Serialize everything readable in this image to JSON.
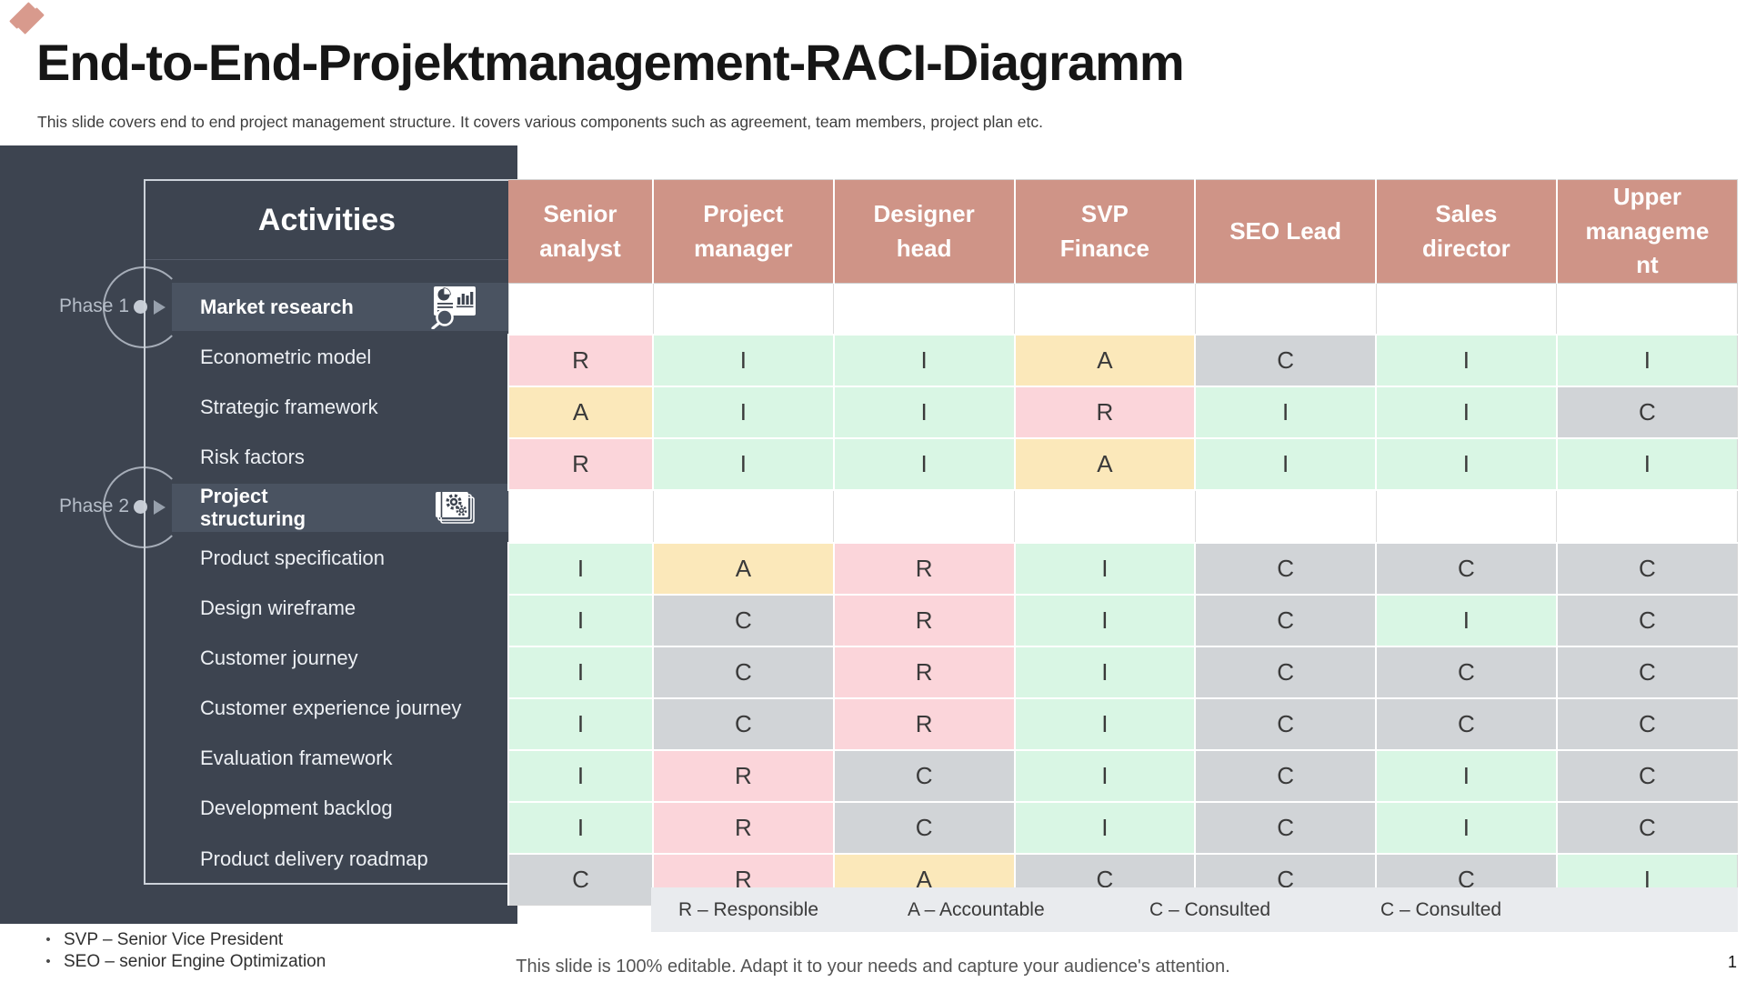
{
  "page": {
    "title": "End-to-End-Projektmanagement-RACI-Diagramm",
    "subtitle": "This slide covers end to end project management structure. It covers various components such as agreement, team members, project plan etc.",
    "footer_note": "This slide is 100% editable. Adapt it to your needs and capture your audience's attention.",
    "page_number": "1",
    "logo_icon": "diagonal-ribbons-logo"
  },
  "sidebar": {
    "header": "Activities",
    "phases": [
      {
        "label": "Phase 1",
        "row_index": 0
      },
      {
        "label": "Phase 2",
        "row_index": 4
      }
    ]
  },
  "table": {
    "columns": [
      "Senior analyst",
      "Project manager",
      "Designer head",
      "SVP Finance",
      "SEO Lead",
      "Sales director",
      "Upper management"
    ],
    "rows": [
      {
        "activity": "Market research",
        "highlighted": true,
        "icon": "market-research-chart-icon",
        "cells": [
          "",
          "",
          "",
          "",
          "",
          "",
          ""
        ]
      },
      {
        "activity": "Econometric model",
        "highlighted": false,
        "cells": [
          "R",
          "I",
          "I",
          "A",
          "C",
          "I",
          "I"
        ]
      },
      {
        "activity": "Strategic framework",
        "highlighted": false,
        "cells": [
          "A",
          "I",
          "I",
          "R",
          "I",
          "I",
          "C"
        ]
      },
      {
        "activity": "Risk factors",
        "highlighted": false,
        "cells": [
          "R",
          "I",
          "I",
          "A",
          "I",
          "I",
          "I"
        ]
      },
      {
        "activity": "Project\nstructuring",
        "highlighted": true,
        "icon": "project-structuring-gears-icon",
        "cells": [
          "",
          "",
          "",
          "",
          "",
          "",
          ""
        ]
      },
      {
        "activity": "Product specification",
        "highlighted": false,
        "cells": [
          "I",
          "A",
          "R",
          "I",
          "C",
          "C",
          "C"
        ]
      },
      {
        "activity": "Design wireframe",
        "highlighted": false,
        "cells": [
          "I",
          "C",
          "R",
          "I",
          "C",
          "I",
          "C"
        ]
      },
      {
        "activity": "Customer journey",
        "highlighted": false,
        "cells": [
          "I",
          "C",
          "R",
          "I",
          "C",
          "C",
          "C"
        ]
      },
      {
        "activity": "Customer experience journey",
        "highlighted": false,
        "cells": [
          "I",
          "C",
          "R",
          "I",
          "C",
          "C",
          "C"
        ]
      },
      {
        "activity": "Evaluation framework",
        "highlighted": false,
        "cells": [
          "I",
          "R",
          "C",
          "I",
          "C",
          "I",
          "C"
        ]
      },
      {
        "activity": "Development backlog",
        "highlighted": false,
        "cells": [
          "I",
          "R",
          "C",
          "I",
          "C",
          "I",
          "C"
        ]
      },
      {
        "activity": "Product delivery roadmap",
        "highlighted": false,
        "cells": [
          "C",
          "R",
          "A",
          "C",
          "C",
          "C",
          "I"
        ]
      }
    ]
  },
  "legend": {
    "items": [
      "R – Responsible",
      "A – Accountable",
      "C – Consulted",
      "C – Consulted"
    ]
  },
  "footnotes": [
    "SVP – Senior Vice President",
    "SEO – senior Engine Optimization"
  ],
  "colors": {
    "accent_salmon": "#cf9487",
    "logo_salmon": "#d89a8d",
    "panel_dark": "#3d4450",
    "row_highlight": "#4a5361",
    "legend_bar": "#e9ebee",
    "cell": {
      "R": "#fbd5da",
      "A": "#fbe8ba",
      "C": "#d1d4d7",
      "I": "#d9f6e4"
    }
  }
}
